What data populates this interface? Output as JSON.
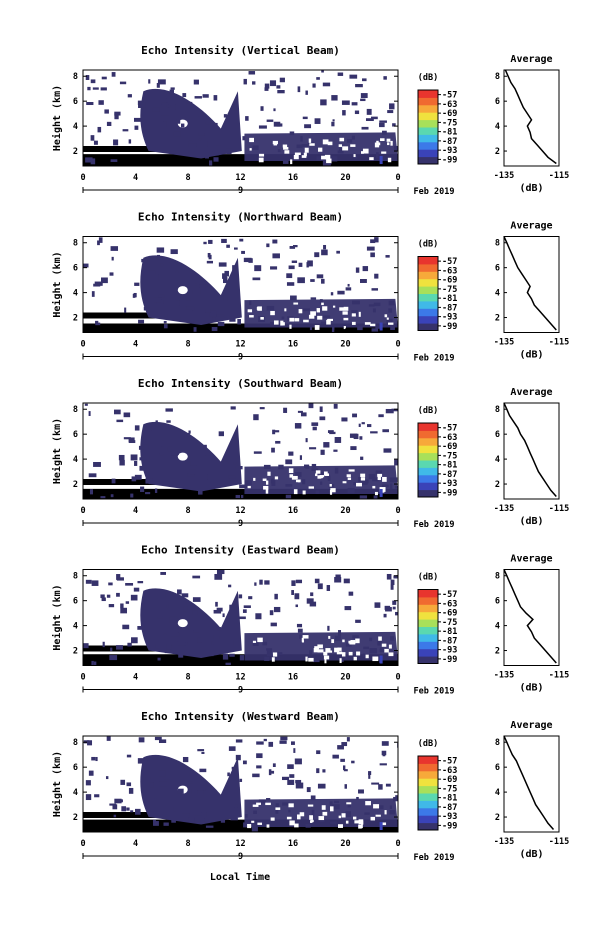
{
  "figure": {
    "xlabel_bottom": "Local Time",
    "day_label": "9",
    "month_label": "Feb 2019",
    "colorbar_unit": "(dB)",
    "avg_title": "Average",
    "avg_xlabel": "(dB)"
  },
  "colormap": [
    "#36326b",
    "#3a43b8",
    "#3c79e8",
    "#40b9e8",
    "#5ad8b0",
    "#a8e05a",
    "#f0e23e",
    "#f7a93a",
    "#f06a30",
    "#e8352e"
  ],
  "chart_data": [
    {
      "type": "heatmap",
      "title": "Echo Intensity (Vertical Beam)",
      "ylabel": "Height (km)",
      "x_ticks": [
        "0",
        "4",
        "8",
        "12",
        "16",
        "20",
        "0"
      ],
      "y_ticks": [
        "2",
        "4",
        "6",
        "8"
      ],
      "xlim": [
        0,
        24
      ],
      "ylim": [
        0.8,
        8.5
      ],
      "colorbar_ticks": [
        "-57",
        "-63",
        "-69",
        "-75",
        "-81",
        "-87",
        "-93",
        "-99"
      ],
      "shape_seed": 1,
      "avg_x_ticks": [
        "-135",
        "-115"
      ],
      "avg_y_ticks": [
        "2",
        "4",
        "6",
        "8"
      ],
      "average_profile": {
        "height": [
          1,
          1.5,
          2,
          2.5,
          3,
          3.5,
          4,
          4.5,
          5,
          5.5,
          6,
          6.5,
          7,
          7.5,
          8,
          8.5
        ],
        "db": [
          -116,
          -119,
          -121,
          -123,
          -125,
          -125.5,
          -126.5,
          -125,
          -126.5,
          -128,
          -129,
          -130,
          -131,
          -132.5,
          -133.5,
          -134.5
        ]
      }
    },
    {
      "type": "heatmap",
      "title": "Echo Intensity (Northward Beam)",
      "ylabel": "Height (km)",
      "x_ticks": [
        "0",
        "4",
        "8",
        "12",
        "16",
        "20",
        "0"
      ],
      "y_ticks": [
        "2",
        "4",
        "6",
        "8"
      ],
      "xlim": [
        0,
        24
      ],
      "ylim": [
        0.8,
        8.5
      ],
      "colorbar_ticks": [
        "-57",
        "-63",
        "-69",
        "-75",
        "-81",
        "-87",
        "-93",
        "-99"
      ],
      "shape_seed": 2,
      "avg_x_ticks": [
        "-135",
        "-115"
      ],
      "avg_y_ticks": [
        "2",
        "4",
        "6",
        "8"
      ],
      "average_profile": {
        "height": [
          1,
          1.5,
          2,
          2.5,
          3,
          3.5,
          4,
          4.5,
          5,
          5.5,
          6,
          6.5,
          7,
          7.5,
          8,
          8.5
        ],
        "db": [
          -116,
          -118,
          -120,
          -122,
          -124,
          -125,
          -126.5,
          -125.5,
          -127,
          -128.5,
          -130,
          -131,
          -132,
          -133,
          -134,
          -135
        ]
      }
    },
    {
      "type": "heatmap",
      "title": "Echo Intensity (Southward Beam)",
      "ylabel": "Height (km)",
      "x_ticks": [
        "0",
        "4",
        "8",
        "12",
        "16",
        "20",
        "0"
      ],
      "y_ticks": [
        "2",
        "4",
        "6",
        "8"
      ],
      "xlim": [
        0,
        24
      ],
      "ylim": [
        0.8,
        8.5
      ],
      "colorbar_ticks": [
        "-57",
        "-63",
        "-69",
        "-75",
        "-81",
        "-87",
        "-93",
        "-99"
      ],
      "shape_seed": 3,
      "avg_x_ticks": [
        "-135",
        "-115"
      ],
      "avg_y_ticks": [
        "2",
        "4",
        "6",
        "8"
      ],
      "average_profile": {
        "height": [
          1,
          1.5,
          2,
          2.5,
          3,
          3.5,
          4,
          4.5,
          5,
          5.5,
          6,
          6.5,
          7,
          7.5,
          8,
          8.5
        ],
        "db": [
          -116,
          -118,
          -119.5,
          -121,
          -122.5,
          -123.5,
          -124.5,
          -125.5,
          -126.5,
          -127.5,
          -129,
          -130,
          -131.5,
          -133,
          -134,
          -135
        ]
      }
    },
    {
      "type": "heatmap",
      "title": "Echo Intensity (Eastward Beam)",
      "ylabel": "Height (km)",
      "x_ticks": [
        "0",
        "4",
        "8",
        "12",
        "16",
        "20",
        "0"
      ],
      "y_ticks": [
        "2",
        "4",
        "6",
        "8"
      ],
      "xlim": [
        0,
        24
      ],
      "ylim": [
        0.8,
        8.5
      ],
      "colorbar_ticks": [
        "-57",
        "-63",
        "-69",
        "-75",
        "-81",
        "-87",
        "-93",
        "-99"
      ],
      "shape_seed": 4,
      "avg_x_ticks": [
        "-135",
        "-115"
      ],
      "avg_y_ticks": [
        "2",
        "4",
        "6",
        "8"
      ],
      "average_profile": {
        "height": [
          1,
          1.5,
          2,
          2.5,
          3,
          3.5,
          4,
          4.5,
          5,
          5.5,
          6,
          6.5,
          7,
          7.5,
          8,
          8.5
        ],
        "db": [
          -116,
          -118,
          -120,
          -122,
          -124,
          -125,
          -126.5,
          -124.5,
          -127,
          -129,
          -130,
          -131,
          -132,
          -133,
          -134,
          -135
        ]
      }
    },
    {
      "type": "heatmap",
      "title": "Echo Intensity (Westward Beam)",
      "ylabel": "Height (km)",
      "x_ticks": [
        "0",
        "4",
        "8",
        "12",
        "16",
        "20",
        "0"
      ],
      "y_ticks": [
        "2",
        "4",
        "6",
        "8"
      ],
      "xlim": [
        0,
        24
      ],
      "ylim": [
        0.8,
        8.5
      ],
      "colorbar_ticks": [
        "-57",
        "-63",
        "-69",
        "-75",
        "-81",
        "-87",
        "-93",
        "-99"
      ],
      "shape_seed": 5,
      "avg_x_ticks": [
        "-135",
        "-115"
      ],
      "avg_y_ticks": [
        "2",
        "4",
        "6",
        "8"
      ],
      "average_profile": {
        "height": [
          1,
          1.5,
          2,
          2.5,
          3,
          3.5,
          4,
          4.5,
          5,
          5.5,
          6,
          6.5,
          7,
          7.5,
          8,
          8.5
        ],
        "db": [
          -117,
          -119,
          -120.5,
          -122,
          -123.5,
          -124.5,
          -125.5,
          -126.5,
          -127.5,
          -128.5,
          -129.5,
          -130.5,
          -132,
          -133,
          -134,
          -135
        ]
      }
    }
  ]
}
